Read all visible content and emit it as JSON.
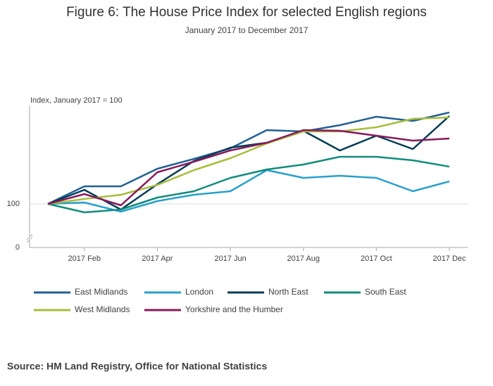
{
  "chart_data": {
    "type": "line",
    "title": "Figure 6: The House Price Index for selected English regions",
    "subtitle": "January 2017 to December 2017",
    "y_label": "Index, January 2017 = 100",
    "source": "Source: HM Land Registry, Office for National Statistics",
    "categories": [
      null,
      "2017 Feb",
      null,
      "2017 Apr",
      null,
      "2017 Jun",
      null,
      "2017 Aug",
      null,
      "2017 Oct",
      null,
      "2017 Dec"
    ],
    "ylim": [
      97.5,
      107
    ],
    "yticks": [
      0,
      100
    ],
    "axis_break": true,
    "grid": true,
    "series": [
      {
        "name": "East Midlands",
        "color": "#206095",
        "values": [
          100,
          101.25,
          101.25,
          102.5,
          103.2,
          103.95,
          105.25,
          105.15,
          105.6,
          106.2,
          105.9,
          106.5
        ]
      },
      {
        "name": "London",
        "color": "#27a0cc",
        "values": [
          100,
          100.1,
          99.45,
          100.2,
          100.65,
          100.9,
          102.4,
          101.85,
          102,
          101.85,
          100.9,
          101.6
        ]
      },
      {
        "name": "North East",
        "color": "#003c57",
        "values": [
          100,
          101,
          99.6,
          101.4,
          103.05,
          104,
          104.35,
          105.2,
          103.8,
          104.85,
          103.9,
          106.25
        ]
      },
      {
        "name": "South East",
        "color": "#118c7b",
        "values": [
          100,
          99.4,
          99.6,
          100.45,
          100.9,
          101.85,
          102.45,
          102.8,
          103.35,
          103.35,
          103.1,
          102.65
        ]
      },
      {
        "name": "West Midlands",
        "color": "#a8bd3a",
        "values": [
          100,
          100.35,
          100.65,
          101.35,
          102.4,
          103.25,
          104.3,
          105.15,
          105.15,
          105.45,
          106.05,
          106.15
        ]
      },
      {
        "name": "Yorkshire and the Humber",
        "color": "#871a5b",
        "values": [
          100,
          100.7,
          99.9,
          102.25,
          103,
          103.8,
          104.35,
          105.25,
          105.2,
          104.85,
          104.5,
          104.65
        ]
      }
    ]
  }
}
